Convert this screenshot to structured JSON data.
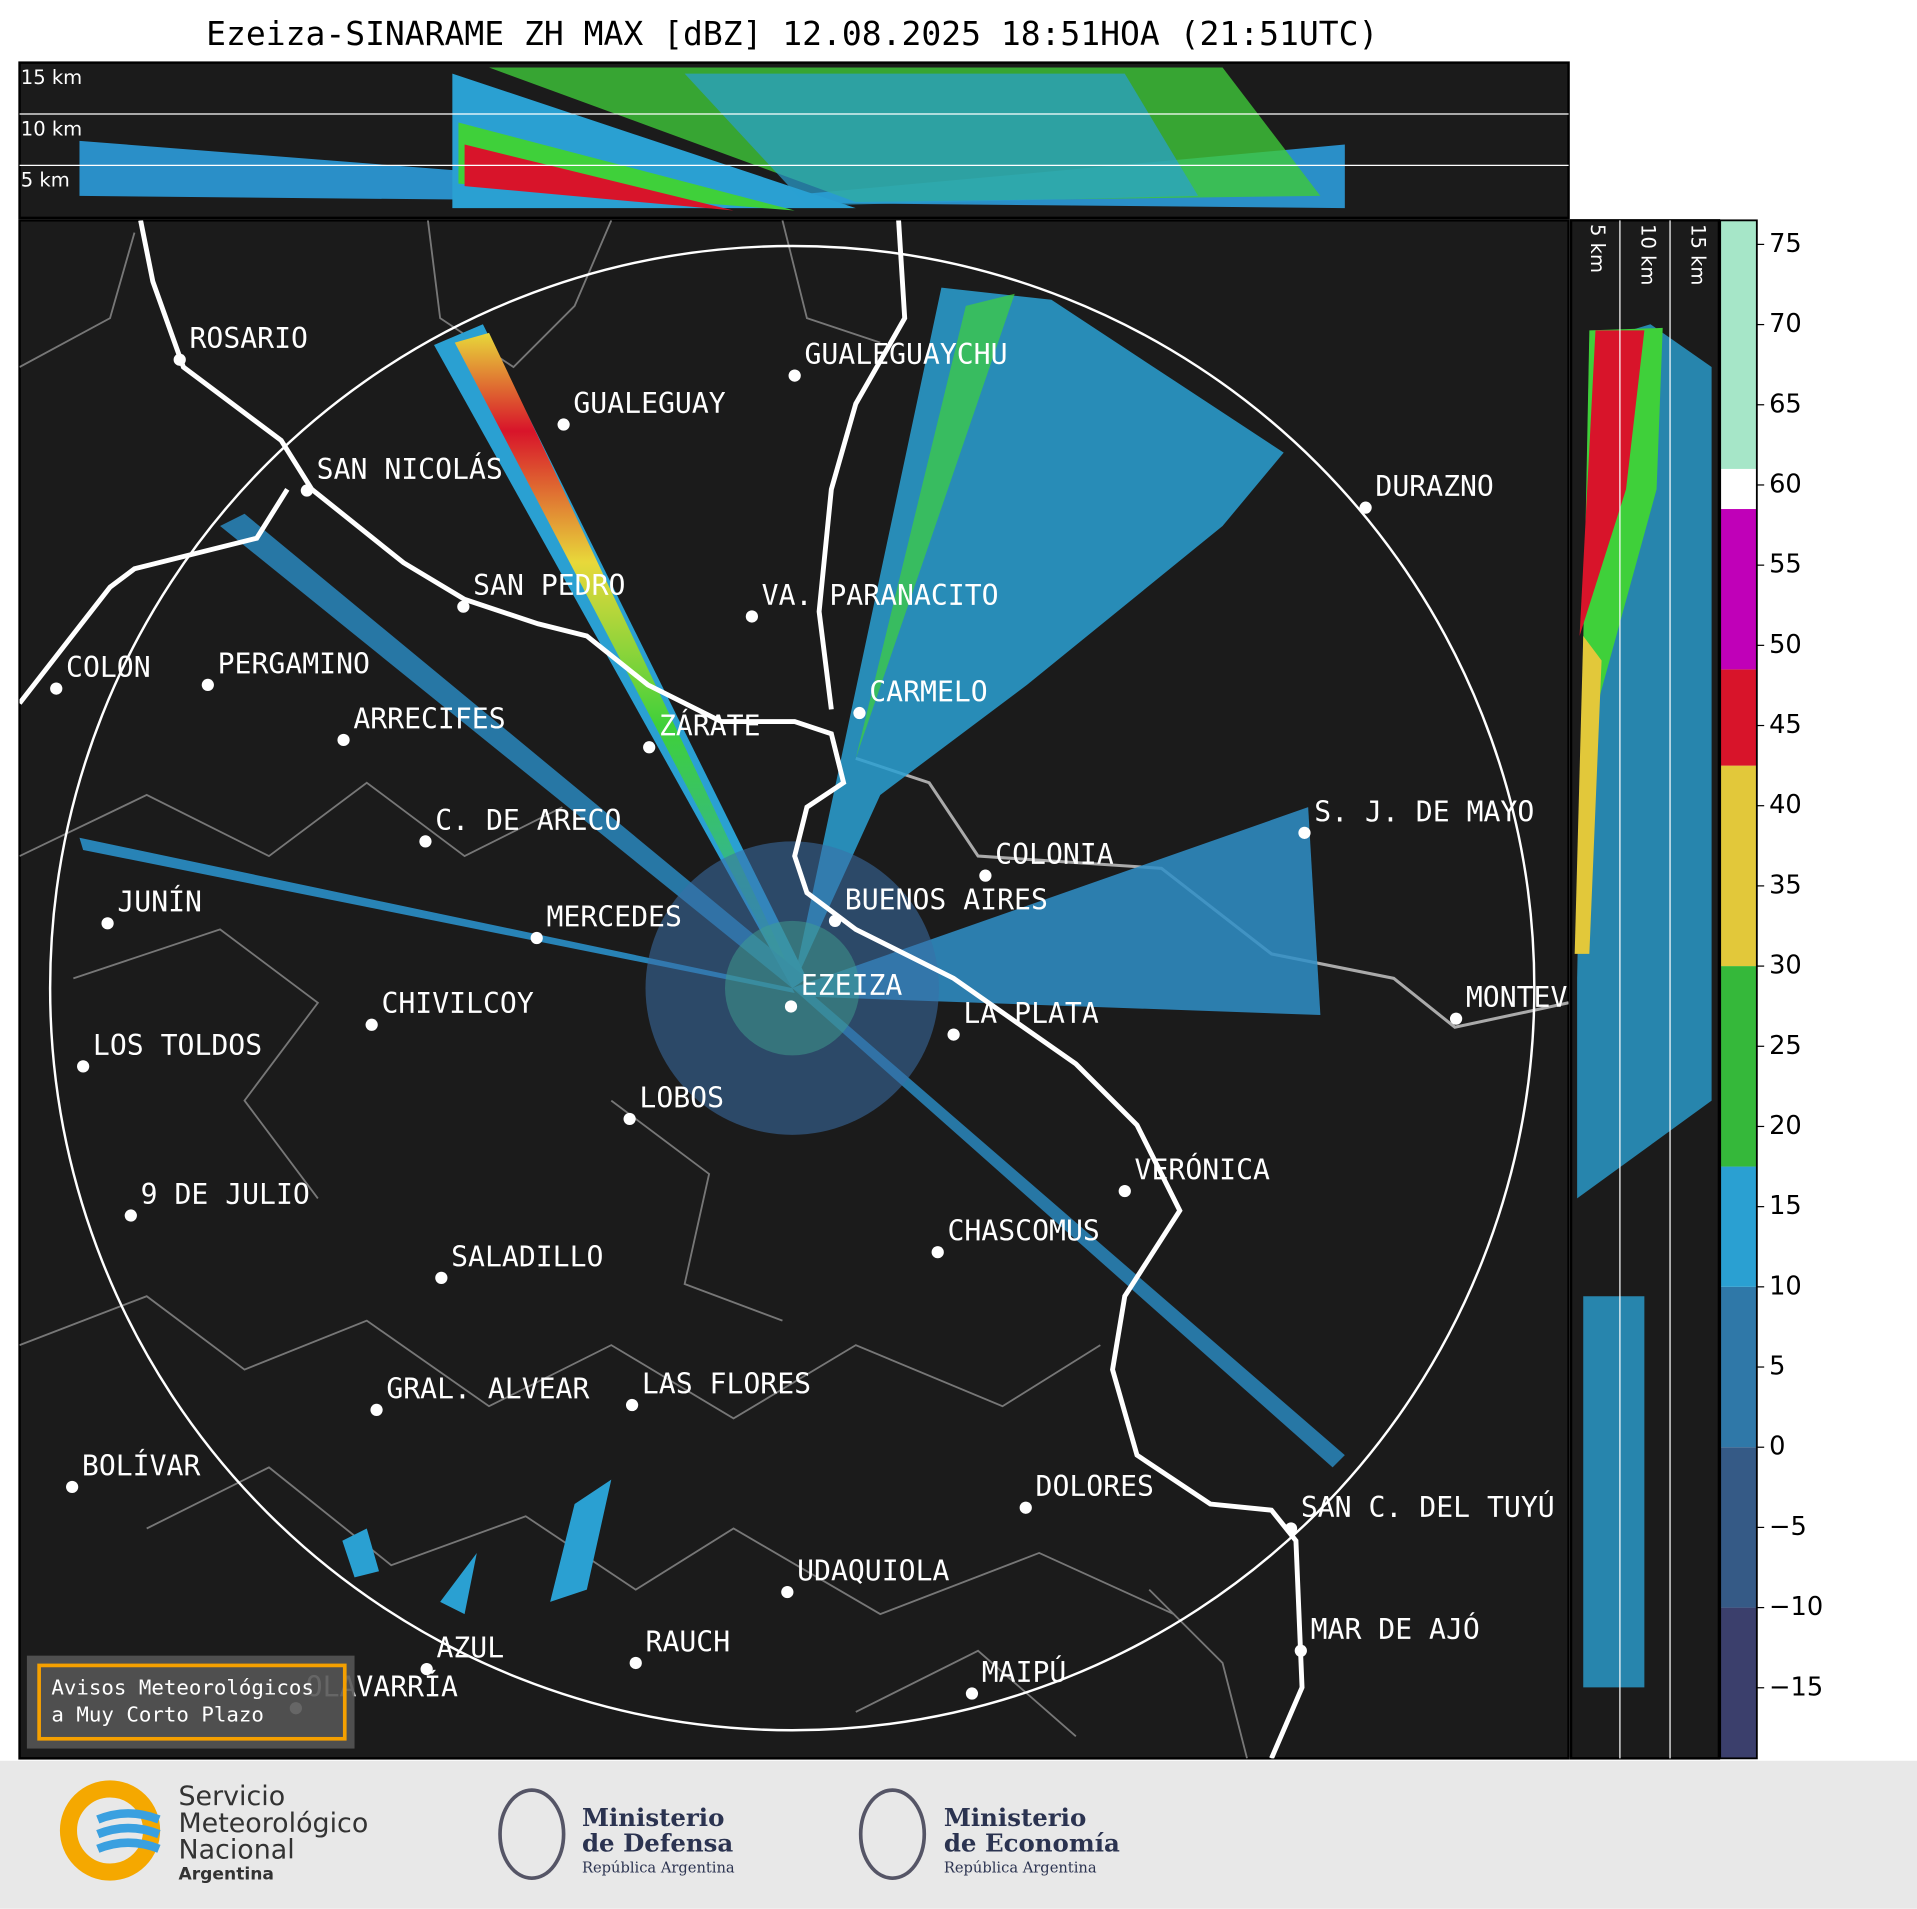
{
  "title": "Ezeiza-SINARAME ZH MAX [dBZ] 12.08.2025 18:51HOA (21:51UTC)",
  "top_panel": {
    "heights": [
      "15 km",
      "10 km",
      "5 km"
    ]
  },
  "side_panel": {
    "heights": [
      "5 km",
      "10 km",
      "15 km"
    ]
  },
  "cities": [
    "ROSARIO",
    "GUALEGUAYCHU",
    "GUALEGUAY",
    "SAN NICOLÁS",
    "DURAZNO",
    "SAN PEDRO",
    "VA. PARANACITO",
    "COLON",
    "PERGAMINO",
    "CARMELO",
    "ARRECIFES",
    "ZÁRATE",
    "C. DE ARECO",
    "S. J. DE MAYO",
    "COLONIA",
    "JUNÍN",
    "BUENOS AIRES",
    "MERCEDES",
    "EZEIZA",
    "MONTEV",
    "CHIVILCOY",
    "LA PLATA",
    "LOS TOLDOS",
    "LOBOS",
    "VERÓNICA",
    "9 DE JULIO",
    "CHASCOMUS",
    "SALADILLO",
    "GRAL. ALVEAR",
    "LAS FLORES",
    "BOLÍVAR",
    "DOLORES",
    "SAN C. DEL TUYÚ",
    "UDAQUIOLA",
    "MAR DE AJÓ",
    "RAUCH",
    "AZUL",
    "OLAVARRÍA",
    "MAIPÚ"
  ],
  "notice": [
    "Avisos Meteorológicos",
    "a Muy Corto Plazo"
  ],
  "colorbar": {
    "lim": [
      -19.4,
      76.5
    ],
    "bins": [
      -19.4,
      -10,
      0,
      10,
      17.5,
      30,
      42.5,
      48.5,
      58.5,
      61,
      76.5
    ],
    "colors": [
      "#3b3f6c",
      "#355a86",
      "#2f78a8",
      "#2aa0d2",
      "#35b83a",
      "#e2c83a",
      "#d8142a",
      "#c000b8",
      "#ffffff",
      "#a6e6c8"
    ],
    "ticks": [
      {
        "value": -15,
        "label": "−15"
      },
      {
        "value": -10,
        "label": "−10"
      },
      {
        "value": -5,
        "label": "−5"
      },
      0,
      5,
      10,
      15,
      20,
      25,
      30,
      35,
      40,
      45,
      50,
      55,
      60,
      65,
      70,
      75
    ]
  },
  "logos": {
    "smn": [
      "Servicio",
      "Meteorológico",
      "Nacional",
      "Argentina"
    ],
    "defensa": [
      "Ministerio",
      "de Defensa",
      "República Argentina"
    ],
    "economia": [
      "Ministerio",
      "de Economía",
      "República Argentina"
    ]
  }
}
